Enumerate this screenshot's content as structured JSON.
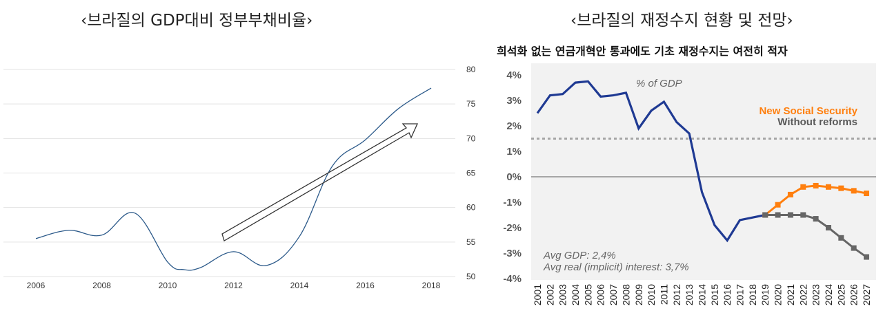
{
  "left": {
    "title": "‹브라질의 GDP대비 정부부채비율›"
  },
  "right": {
    "title": "‹브라질의 재정수지 현황 및 전망›",
    "subtitle": "희석화 없는 연금개혁안 통과에도 기초 재정수지는 여전히 적자",
    "unit_note": "% of GDP",
    "annotation_1": "Avg GDP: 2,4%",
    "annotation_2": "Avg real (implicit) interest: 3,7%",
    "legend_1": "New Social Security",
    "legend_2": "Without reforms"
  },
  "colors": {
    "left_line": "#2c5a8a",
    "historical": "#1f3a93",
    "new_ss": "#ff7f0e",
    "without_reforms": "#666666",
    "dashed_ref": "#a6a6a6",
    "zero_line": "#a6a6a6",
    "plot_bg": "#f2f2f2"
  },
  "chart_data": [
    {
      "type": "line",
      "title": "‹브라질의 GDP대비 정부부채비율›",
      "xlabel": "",
      "ylabel": "",
      "x_ticks": [
        2006,
        2008,
        2010,
        2012,
        2014,
        2016,
        2018
      ],
      "y_ticks": [
        50,
        55,
        60,
        65,
        70,
        75,
        80
      ],
      "xlim": [
        2006,
        2018
      ],
      "ylim": [
        50,
        80
      ],
      "y_axis_side": "right",
      "grid": true,
      "annotation": "upward arrow",
      "series": [
        {
          "x": [
            2006,
            2007,
            2008,
            2009,
            2010,
            2010.5,
            2011,
            2012,
            2013,
            2014,
            2015,
            2016,
            2017,
            2018
          ],
          "values": [
            55.5,
            56.7,
            56.0,
            59.2,
            52.1,
            51.0,
            51.3,
            53.6,
            51.6,
            55.8,
            66.0,
            69.8,
            74.3,
            77.3
          ]
        }
      ]
    },
    {
      "type": "line",
      "title": "‹브라질의 재정수지 현황 및 전망›",
      "subtitle": "희석화 없는 연금개혁안 통과에도 기초 재정수지는 여전히 적자",
      "xlabel": "",
      "ylabel": "% of GDP",
      "categories": [
        "2001",
        "2002",
        "2003",
        "2004",
        "2005",
        "2006",
        "2007",
        "2008",
        "2009",
        "2010",
        "2011",
        "2012",
        "2013",
        "2014",
        "2015",
        "2016",
        "2017",
        "2018",
        "2019",
        "2020",
        "2021",
        "2022",
        "2023",
        "2024",
        "2025",
        "2026",
        "2027"
      ],
      "y_ticks": [
        "4%",
        "3%",
        "2%",
        "1%",
        "0%",
        "-1%",
        "-2%",
        "-3%",
        "-4%"
      ],
      "ylim": [
        -4,
        4
      ],
      "grid": false,
      "legend_position": "right",
      "reference_line": 1.5,
      "series": [
        {
          "values": [
            2.5,
            3.2,
            3.25,
            3.7,
            3.75,
            3.15,
            3.2,
            3.3,
            1.9,
            2.6,
            2.95,
            2.15,
            1.7,
            -0.6,
            -1.9,
            -2.5,
            -1.7,
            -1.6,
            -1.5,
            null,
            null,
            null,
            null,
            null,
            null,
            null,
            null
          ]
        },
        {
          "name": "New Social Security",
          "values": [
            null,
            null,
            null,
            null,
            null,
            null,
            null,
            null,
            null,
            null,
            null,
            null,
            null,
            null,
            null,
            null,
            null,
            null,
            -1.5,
            -1.1,
            -0.7,
            -0.4,
            -0.35,
            -0.4,
            -0.45,
            -0.55,
            -0.65
          ]
        },
        {
          "name": "Without reforms",
          "values": [
            null,
            null,
            null,
            null,
            null,
            null,
            null,
            null,
            null,
            null,
            null,
            null,
            null,
            null,
            null,
            null,
            null,
            null,
            -1.5,
            -1.5,
            -1.5,
            -1.5,
            -1.65,
            -2.0,
            -2.4,
            -2.8,
            -3.15
          ]
        }
      ]
    }
  ]
}
